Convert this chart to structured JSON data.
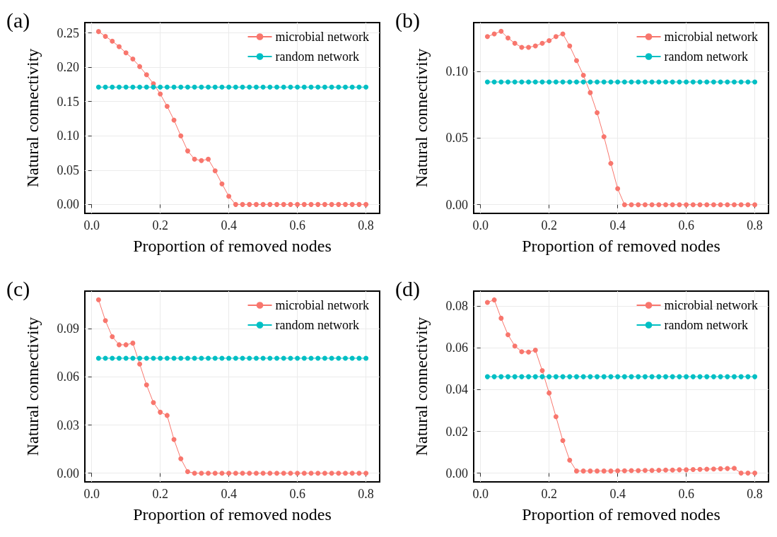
{
  "chart_data": [
    {
      "type": "line",
      "title": "(a)",
      "xlabel": "Proportion of removed nodes",
      "ylabel": "Natural connectivity",
      "marker": "circle",
      "line_style": "solid",
      "grid": true,
      "legend": "top right",
      "x": [
        0.02,
        0.04,
        0.06,
        0.08,
        0.1,
        0.12,
        0.14,
        0.16,
        0.18,
        0.2,
        0.22,
        0.24,
        0.26,
        0.28,
        0.3,
        0.32,
        0.34,
        0.36,
        0.38,
        0.4,
        0.42,
        0.44,
        0.46,
        0.48,
        0.5,
        0.52,
        0.54,
        0.56,
        0.58,
        0.6,
        0.62,
        0.64,
        0.66,
        0.68,
        0.7,
        0.72,
        0.74,
        0.76,
        0.78,
        0.8
      ],
      "xlim": [
        -0.02,
        0.84
      ],
      "xticks": [
        {
          "value": 0,
          "label": "0.0"
        },
        {
          "value": 0.2,
          "label": "0.2"
        },
        {
          "value": 0.4,
          "label": "0.4"
        },
        {
          "value": 0.6,
          "label": "0.6"
        },
        {
          "value": 0.8,
          "label": "0.8"
        }
      ],
      "ylim": [
        -0.013,
        0.265
      ],
      "yticks": [
        {
          "value": 0,
          "label": "0.00"
        },
        {
          "value": 0.05,
          "label": "0.05"
        },
        {
          "value": 0.1,
          "label": "0.10"
        },
        {
          "value": 0.15,
          "label": "0.15"
        },
        {
          "value": 0.2,
          "label": "0.20"
        },
        {
          "value": 0.25,
          "label": "0.25"
        }
      ],
      "series": [
        {
          "name": "microbial network",
          "color": "#f8766d",
          "values": [
            0.252,
            0.245,
            0.238,
            0.23,
            0.221,
            0.212,
            0.201,
            0.189,
            0.176,
            0.161,
            0.143,
            0.123,
            0.1,
            0.078,
            0.066,
            0.064,
            0.066,
            0.049,
            0.03,
            0.012,
            0,
            0,
            0,
            0,
            0,
            0,
            0,
            0,
            0,
            0,
            0,
            0,
            0,
            0,
            0,
            0,
            0,
            0,
            0,
            0
          ]
        },
        {
          "name": "random network",
          "color": "#00bfc4",
          "values": [
            0.171,
            0.171,
            0.171,
            0.171,
            0.171,
            0.171,
            0.171,
            0.171,
            0.171,
            0.171,
            0.171,
            0.171,
            0.171,
            0.171,
            0.171,
            0.171,
            0.171,
            0.171,
            0.171,
            0.171,
            0.171,
            0.171,
            0.171,
            0.171,
            0.171,
            0.171,
            0.171,
            0.171,
            0.171,
            0.171,
            0.171,
            0.171,
            0.171,
            0.171,
            0.171,
            0.171,
            0.171,
            0.171,
            0.171,
            0.171
          ]
        }
      ]
    },
    {
      "type": "line",
      "title": "(b)",
      "xlabel": "Proportion of removed nodes",
      "ylabel": "Natural connectivity",
      "marker": "circle",
      "line_style": "solid",
      "grid": true,
      "legend": "top right",
      "x": [
        0.02,
        0.04,
        0.06,
        0.08,
        0.1,
        0.12,
        0.14,
        0.16,
        0.18,
        0.2,
        0.22,
        0.24,
        0.26,
        0.28,
        0.3,
        0.32,
        0.34,
        0.36,
        0.38,
        0.4,
        0.42,
        0.44,
        0.46,
        0.48,
        0.5,
        0.52,
        0.54,
        0.56,
        0.58,
        0.6,
        0.62,
        0.64,
        0.66,
        0.68,
        0.7,
        0.72,
        0.74,
        0.76,
        0.78,
        0.8
      ],
      "xlim": [
        -0.02,
        0.84
      ],
      "xticks": [
        {
          "value": 0,
          "label": "0.0"
        },
        {
          "value": 0.2,
          "label": "0.2"
        },
        {
          "value": 0.4,
          "label": "0.4"
        },
        {
          "value": 0.6,
          "label": "0.6"
        },
        {
          "value": 0.8,
          "label": "0.8"
        }
      ],
      "ylim": [
        -0.0065,
        0.1365
      ],
      "yticks": [
        {
          "value": 0,
          "label": "0.00"
        },
        {
          "value": 0.05,
          "label": "0.05"
        },
        {
          "value": 0.1,
          "label": "0.10"
        }
      ],
      "series": [
        {
          "name": "microbial network",
          "color": "#f8766d",
          "values": [
            0.126,
            0.128,
            0.13,
            0.125,
            0.121,
            0.118,
            0.118,
            0.119,
            0.121,
            0.123,
            0.126,
            0.128,
            0.119,
            0.108,
            0.097,
            0.084,
            0.069,
            0.051,
            0.031,
            0.012,
            0,
            0,
            0,
            0,
            0,
            0,
            0,
            0,
            0,
            0,
            0,
            0,
            0,
            0,
            0,
            0,
            0,
            0,
            0,
            0
          ]
        },
        {
          "name": "random network",
          "color": "#00bfc4",
          "values": [
            0.092,
            0.092,
            0.092,
            0.092,
            0.092,
            0.092,
            0.092,
            0.092,
            0.092,
            0.092,
            0.092,
            0.092,
            0.092,
            0.092,
            0.092,
            0.092,
            0.092,
            0.092,
            0.092,
            0.092,
            0.092,
            0.092,
            0.092,
            0.092,
            0.092,
            0.092,
            0.092,
            0.092,
            0.092,
            0.092,
            0.092,
            0.092,
            0.092,
            0.092,
            0.092,
            0.092,
            0.092,
            0.092,
            0.092,
            0.092
          ]
        }
      ]
    },
    {
      "type": "line",
      "title": "(c)",
      "xlabel": "Proportion of removed nodes",
      "ylabel": "Natural connectivity",
      "marker": "circle",
      "line_style": "solid",
      "grid": true,
      "legend": "top right",
      "x": [
        0.02,
        0.04,
        0.06,
        0.08,
        0.1,
        0.12,
        0.14,
        0.16,
        0.18,
        0.2,
        0.22,
        0.24,
        0.26,
        0.28,
        0.3,
        0.32,
        0.34,
        0.36,
        0.38,
        0.4,
        0.42,
        0.44,
        0.46,
        0.48,
        0.5,
        0.52,
        0.54,
        0.56,
        0.58,
        0.6,
        0.62,
        0.64,
        0.66,
        0.68,
        0.7,
        0.72,
        0.74,
        0.76,
        0.78,
        0.8
      ],
      "xlim": [
        -0.02,
        0.84
      ],
      "xticks": [
        {
          "value": 0,
          "label": "0.0"
        },
        {
          "value": 0.2,
          "label": "0.2"
        },
        {
          "value": 0.4,
          "label": "0.4"
        },
        {
          "value": 0.6,
          "label": "0.6"
        },
        {
          "value": 0.8,
          "label": "0.8"
        }
      ],
      "ylim": [
        -0.0054,
        0.1134
      ],
      "yticks": [
        {
          "value": 0,
          "label": "0.00"
        },
        {
          "value": 0.03,
          "label": "0.03"
        },
        {
          "value": 0.06,
          "label": "0.06"
        },
        {
          "value": 0.09,
          "label": "0.09"
        }
      ],
      "series": [
        {
          "name": "microbial network",
          "color": "#f8766d",
          "values": [
            0.108,
            0.095,
            0.085,
            0.08,
            0.08,
            0.081,
            0.068,
            0.055,
            0.044,
            0.038,
            0.036,
            0.021,
            0.009,
            0.001,
            0,
            0,
            0,
            0,
            0,
            0,
            0,
            0,
            0,
            0,
            0,
            0,
            0,
            0,
            0,
            0,
            0,
            0,
            0,
            0,
            0,
            0,
            0,
            0,
            0,
            0
          ]
        },
        {
          "name": "random network",
          "color": "#00bfc4",
          "values": [
            0.0716,
            0.0716,
            0.0716,
            0.0716,
            0.0716,
            0.0716,
            0.0716,
            0.0716,
            0.0716,
            0.0716,
            0.0716,
            0.0716,
            0.0716,
            0.0716,
            0.0716,
            0.0716,
            0.0716,
            0.0716,
            0.0716,
            0.0716,
            0.0716,
            0.0716,
            0.0716,
            0.0716,
            0.0716,
            0.0716,
            0.0716,
            0.0716,
            0.0716,
            0.0716,
            0.0716,
            0.0716,
            0.0716,
            0.0716,
            0.0716,
            0.0716,
            0.0716,
            0.0716,
            0.0716,
            0.0716
          ]
        }
      ]
    },
    {
      "type": "line",
      "title": "(d)",
      "xlabel": "Proportion of removed nodes",
      "ylabel": "Natural connectivity",
      "marker": "circle",
      "line_style": "solid",
      "grid": true,
      "legend": "top right",
      "x": [
        0.02,
        0.04,
        0.06,
        0.08,
        0.1,
        0.12,
        0.14,
        0.16,
        0.18,
        0.2,
        0.22,
        0.24,
        0.26,
        0.28,
        0.3,
        0.32,
        0.34,
        0.36,
        0.38,
        0.4,
        0.42,
        0.44,
        0.46,
        0.48,
        0.5,
        0.52,
        0.54,
        0.56,
        0.58,
        0.6,
        0.62,
        0.64,
        0.66,
        0.68,
        0.7,
        0.72,
        0.74,
        0.76,
        0.78,
        0.8
      ],
      "xlim": [
        -0.02,
        0.84
      ],
      "xticks": [
        {
          "value": 0,
          "label": "0.0"
        },
        {
          "value": 0.2,
          "label": "0.2"
        },
        {
          "value": 0.4,
          "label": "0.4"
        },
        {
          "value": 0.6,
          "label": "0.6"
        },
        {
          "value": 0.8,
          "label": "0.8"
        }
      ],
      "ylim": [
        -0.0042,
        0.0872
      ],
      "yticks": [
        {
          "value": 0,
          "label": "0.00"
        },
        {
          "value": 0.02,
          "label": "0.02"
        },
        {
          "value": 0.04,
          "label": "0.04"
        },
        {
          "value": 0.06,
          "label": "0.06"
        },
        {
          "value": 0.08,
          "label": "0.08"
        }
      ],
      "series": [
        {
          "name": "microbial network",
          "color": "#f8766d",
          "values": [
            0.0818,
            0.083,
            0.0742,
            0.0663,
            0.0609,
            0.0582,
            0.058,
            0.0589,
            0.0491,
            0.0384,
            0.027,
            0.0156,
            0.0062,
            0.001,
            0.001,
            0.001,
            0.001,
            0.001,
            0.001,
            0.0011,
            0.0011,
            0.0012,
            0.0012,
            0.0013,
            0.0013,
            0.0014,
            0.0015,
            0.0015,
            0.0016,
            0.0016,
            0.0017,
            0.0018,
            0.0019,
            0.002,
            0.0021,
            0.0022,
            0.0023,
            0,
            0,
            0
          ]
        },
        {
          "name": "random network",
          "color": "#00bfc4",
          "values": [
            0.0462,
            0.0462,
            0.0462,
            0.0462,
            0.0462,
            0.0462,
            0.0462,
            0.0462,
            0.0462,
            0.0462,
            0.0462,
            0.0462,
            0.0462,
            0.0462,
            0.0462,
            0.0462,
            0.0462,
            0.0462,
            0.0462,
            0.0462,
            0.0462,
            0.0462,
            0.0462,
            0.0462,
            0.0462,
            0.0462,
            0.0462,
            0.0462,
            0.0462,
            0.0462,
            0.0462,
            0.0462,
            0.0462,
            0.0462,
            0.0462,
            0.0462,
            0.0462,
            0.0462,
            0.0462,
            0.0462
          ]
        }
      ]
    }
  ]
}
